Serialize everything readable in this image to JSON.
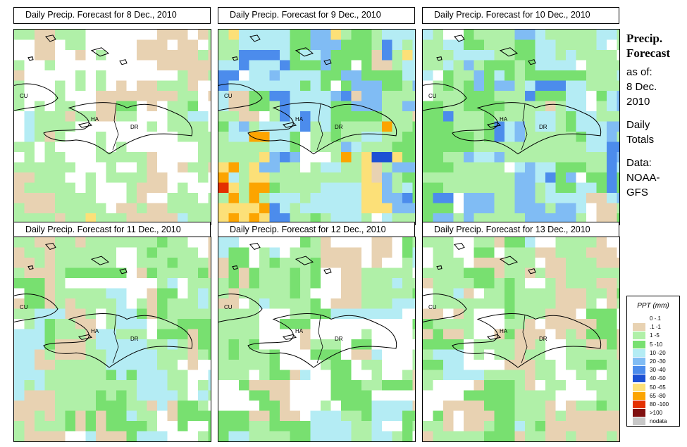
{
  "panels": [
    {
      "title": "Daily Precip. Forecast for  8 Dec., 2010"
    },
    {
      "title": "Daily Precip. Forecast for  9 Dec., 2010"
    },
    {
      "title": "Daily Precip. Forecast for  10 Dec., 2010"
    },
    {
      "title": "Daily Precip. Forecast for  11 Dec., 2010"
    },
    {
      "title": "Daily Precip. Forecast for  12 Dec., 2010"
    },
    {
      "title": "Daily Precip. Forecast for  13 Dec., 2010"
    }
  ],
  "map_labels": {
    "cu": "CU",
    "ha": "HA",
    "dr": "DR"
  },
  "side": {
    "title_line1": "Precip.",
    "title_line2": "Forecast",
    "asof": "as of:",
    "date1": "8 Dec.",
    "date2": "2010",
    "totals1": "Daily",
    "totals2": "Totals",
    "data1": "Data:",
    "data2": "NOAA-",
    "data3": "GFS"
  },
  "legend": {
    "title": "PPT (mm)",
    "items": [
      {
        "label": "0 -.1",
        "color": "#ffffff"
      },
      {
        "label": ".1 -1",
        "color": "#e8d2b2"
      },
      {
        "label": "1 -5",
        "color": "#b0f0a8"
      },
      {
        "label": "5 -10",
        "color": "#78e070"
      },
      {
        "label": "10 -20",
        "color": "#b4ecf4"
      },
      {
        "label": "20 -30",
        "color": "#80bcf4"
      },
      {
        "label": "30 -40",
        "color": "#4c8cec"
      },
      {
        "label": "40 -50",
        "color": "#1c50d4"
      },
      {
        "label": "50 -65",
        "color": "#fce078"
      },
      {
        "label": "65 -80",
        "color": "#fca400"
      },
      {
        "label": "80 -100",
        "color": "#e43000"
      },
      {
        "label": ">100",
        "color": "#801010"
      },
      {
        "label": "nodata",
        "color": "#c8c8c8"
      }
    ]
  }
}
